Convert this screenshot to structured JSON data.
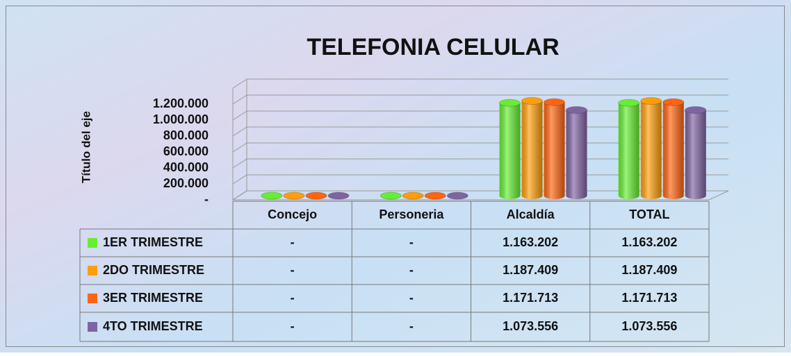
{
  "chart_data": {
    "type": "bar",
    "title": "TELEFONIA CELULAR",
    "y_axis_label": "Título del eje",
    "categories": [
      "Concejo",
      "Personeria",
      "Alcaldía",
      "TOTAL"
    ],
    "series": [
      {
        "name": "1ER TRIMESTRE",
        "color": "#66ee33",
        "values": [
          0,
          0,
          1163202,
          1163202
        ],
        "value_labels": [
          "-",
          "-",
          "1.163.202",
          "1.163.202"
        ]
      },
      {
        "name": "2DO TRIMESTRE",
        "color": "#ff9e0a",
        "values": [
          0,
          0,
          1187409,
          1187409
        ],
        "value_labels": [
          "-",
          "-",
          "1.187.409",
          "1.187.409"
        ]
      },
      {
        "name": "3ER TRIMESTRE",
        "color": "#ff6410",
        "values": [
          0,
          0,
          1171713,
          1171713
        ],
        "value_labels": [
          "-",
          "-",
          "1.171.713",
          "1.171.713"
        ]
      },
      {
        "name": "4TO TRIMESTRE",
        "color": "#8064a2",
        "values": [
          0,
          0,
          1073556,
          1073556
        ],
        "value_labels": [
          "-",
          "-",
          "1.073.556",
          "1.073.556"
        ]
      }
    ],
    "ylim": [
      0,
      1400000
    ],
    "yticks": [
      {
        "value": 0,
        "label": "-"
      },
      {
        "value": 200000,
        "label": "200.000"
      },
      {
        "value": 400000,
        "label": "400.000"
      },
      {
        "value": 600000,
        "label": "600.000"
      },
      {
        "value": 800000,
        "label": "800.000"
      },
      {
        "value": 1000000,
        "label": "1.000.000"
      },
      {
        "value": 1200000,
        "label": "1.200.000"
      }
    ],
    "grid": true
  }
}
